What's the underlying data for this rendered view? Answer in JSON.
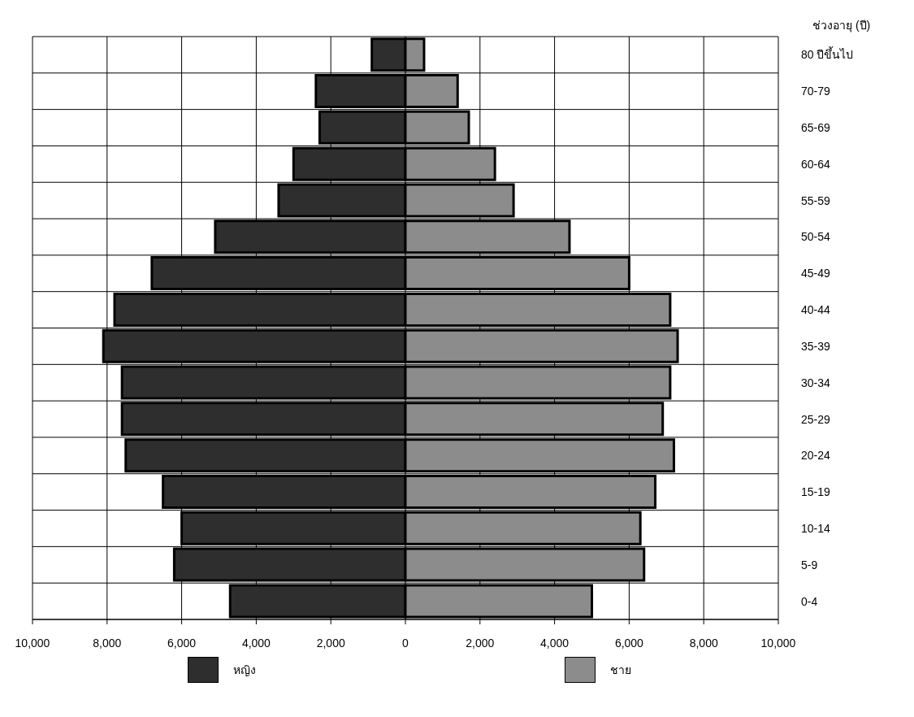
{
  "chart_data": {
    "type": "bar",
    "orientation": "horizontal",
    "stacked": true,
    "ylabel": "ช่วงอายุ (ปี)",
    "categories": [
      "80 ปีขึ้นไป",
      "70-79",
      "65-69",
      "60-64",
      "55-59",
      "50-54",
      "45-49",
      "40-44",
      "35-39",
      "30-34",
      "25-29",
      "20-24",
      "15-19",
      "10-14",
      "5-9",
      "0-4"
    ],
    "series": [
      {
        "name": "หญิง",
        "color": "#2e2e2e",
        "values": [
          -900,
          -2400,
          -2300,
          -3000,
          -3400,
          -5100,
          -6800,
          -7800,
          -8100,
          -7600,
          -7600,
          -7500,
          -6500,
          -6000,
          -6200,
          -4700
        ]
      },
      {
        "name": "ชาย",
        "color": "#8c8c8c",
        "values": [
          500,
          1400,
          1700,
          2400,
          2900,
          4400,
          6000,
          7100,
          7300,
          7100,
          6900,
          7200,
          6700,
          6300,
          6400,
          5000
        ]
      }
    ],
    "xlim": [
      -10000,
      10000
    ],
    "xticks": [
      {
        "value": -10000,
        "label": "10,000"
      },
      {
        "value": -8000,
        "label": "8,000"
      },
      {
        "value": -6000,
        "label": "6,000"
      },
      {
        "value": -4000,
        "label": "4,000"
      },
      {
        "value": -2000,
        "label": "2,000"
      },
      0,
      {
        "value": 2000,
        "label": "2,000"
      },
      {
        "value": 4000,
        "label": "4,000"
      },
      {
        "value": 6000,
        "label": "6,000"
      },
      {
        "value": 8000,
        "label": "8,000"
      },
      {
        "value": 10000,
        "label": "10,000"
      }
    ],
    "grid": true,
    "legend": "bottom"
  }
}
